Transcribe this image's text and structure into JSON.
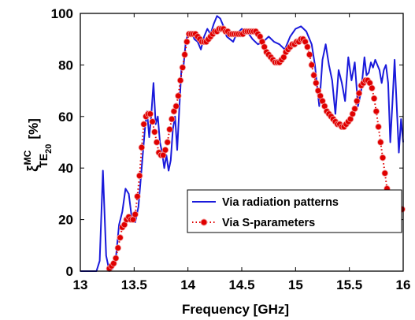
{
  "chart_data": {
    "type": "line",
    "xlabel": "Frequency [GHz]",
    "ylabel": {
      "symbol": "ξ",
      "superscript": "MC",
      "subscript": "TE",
      "subsubscript": "20",
      "unit": "[%]"
    },
    "xlim": [
      13,
      16
    ],
    "ylim": [
      0,
      100
    ],
    "xticks": [
      "13",
      "13.5",
      "14",
      "14.5",
      "15",
      "15.5",
      "16"
    ],
    "yticks": [
      "0",
      "20",
      "40",
      "60",
      "80",
      "100"
    ],
    "grid": false,
    "legend_position": "lower-right",
    "series": [
      {
        "name": "Via radiation patterns",
        "color": "#1a1adb",
        "style": "solid",
        "marker": "none",
        "x": [
          13.0,
          13.15,
          13.18,
          13.21,
          13.24,
          13.27,
          13.3,
          13.33,
          13.36,
          13.39,
          13.42,
          13.45,
          13.48,
          13.51,
          13.54,
          13.57,
          13.6,
          13.62,
          13.64,
          13.66,
          13.68,
          13.7,
          13.72,
          13.74,
          13.76,
          13.78,
          13.8,
          13.82,
          13.84,
          13.86,
          13.88,
          13.9,
          13.92,
          13.94,
          13.96,
          13.98,
          14.0,
          14.03,
          14.06,
          14.09,
          14.12,
          14.15,
          14.18,
          14.21,
          14.24,
          14.27,
          14.3,
          14.33,
          14.36,
          14.39,
          14.42,
          14.45,
          14.5,
          14.55,
          14.6,
          14.65,
          14.7,
          14.75,
          14.8,
          14.85,
          14.9,
          14.95,
          15.0,
          15.05,
          15.1,
          15.15,
          15.18,
          15.22,
          15.25,
          15.28,
          15.31,
          15.34,
          15.37,
          15.4,
          15.43,
          15.46,
          15.49,
          15.52,
          15.55,
          15.58,
          15.61,
          15.64,
          15.66,
          15.68,
          15.7,
          15.72,
          15.74,
          15.76,
          15.78,
          15.8,
          15.82,
          15.84,
          15.86,
          15.88,
          15.9,
          15.92,
          15.94,
          15.96,
          15.98,
          16.0
        ],
        "y": [
          0,
          0,
          4,
          39,
          6,
          0,
          1,
          5,
          18,
          23,
          32,
          30,
          20,
          19,
          25,
          40,
          55,
          62,
          52,
          61,
          73,
          57,
          60,
          50,
          46,
          40,
          45,
          39,
          43,
          55,
          60,
          47,
          63,
          79,
          80,
          89,
          92,
          93,
          90,
          89,
          86,
          91,
          94,
          92,
          96,
          99,
          98,
          95,
          91,
          90,
          89,
          92,
          94,
          93,
          90,
          88,
          89,
          91,
          89,
          88,
          86,
          91,
          94,
          95,
          93,
          88,
          80,
          64,
          82,
          88,
          80,
          74,
          61,
          78,
          73,
          66,
          83,
          74,
          81,
          64,
          70,
          83,
          76,
          77,
          81,
          79,
          82,
          80,
          78,
          73,
          78,
          80,
          73,
          50,
          65,
          82,
          64,
          46,
          59,
          50
        ]
      },
      {
        "name": "Via S-parameters",
        "color": "#e00000",
        "style": "dotted",
        "marker": "o",
        "x": [
          13.27,
          13.29,
          13.31,
          13.33,
          13.35,
          13.37,
          13.39,
          13.41,
          13.43,
          13.45,
          13.47,
          13.49,
          13.51,
          13.53,
          13.55,
          13.57,
          13.59,
          13.61,
          13.63,
          13.65,
          13.67,
          13.69,
          13.71,
          13.73,
          13.75,
          13.77,
          13.79,
          13.81,
          13.83,
          13.85,
          13.87,
          13.89,
          13.91,
          13.93,
          13.95,
          13.97,
          13.99,
          14.01,
          14.03,
          14.05,
          14.07,
          14.09,
          14.11,
          14.13,
          14.15,
          14.17,
          14.19,
          14.21,
          14.23,
          14.25,
          14.27,
          14.29,
          14.31,
          14.33,
          14.35,
          14.37,
          14.39,
          14.41,
          14.43,
          14.45,
          14.47,
          14.49,
          14.51,
          14.53,
          14.55,
          14.57,
          14.59,
          14.61,
          14.63,
          14.65,
          14.67,
          14.69,
          14.71,
          14.73,
          14.75,
          14.77,
          14.79,
          14.81,
          14.83,
          14.85,
          14.87,
          14.89,
          14.91,
          14.93,
          14.95,
          14.97,
          14.99,
          15.01,
          15.03,
          15.05,
          15.07,
          15.09,
          15.11,
          15.13,
          15.15,
          15.17,
          15.19,
          15.21,
          15.23,
          15.25,
          15.27,
          15.29,
          15.31,
          15.33,
          15.35,
          15.37,
          15.39,
          15.41,
          15.43,
          15.45,
          15.47,
          15.49,
          15.51,
          15.53,
          15.55,
          15.57,
          15.59,
          15.61,
          15.63,
          15.65,
          15.67,
          15.69,
          15.71,
          15.73,
          15.75,
          15.77,
          15.79,
          15.81,
          15.83,
          15.85,
          15.87,
          15.89,
          15.91,
          15.93,
          15.95,
          15.97,
          15.99
        ],
        "y": [
          1,
          2,
          3,
          5,
          9,
          13,
          17,
          18,
          20,
          21,
          20,
          20,
          22,
          29,
          37,
          48,
          57,
          60,
          61,
          61,
          58,
          54,
          50,
          46,
          45,
          45,
          47,
          50,
          55,
          59,
          62,
          64,
          68,
          74,
          79,
          84,
          89,
          92,
          92,
          92,
          92,
          91,
          90,
          89,
          89,
          89,
          90,
          91,
          92,
          93,
          93,
          94,
          94,
          94,
          93,
          93,
          92,
          92,
          92,
          92,
          92,
          92,
          92,
          93,
          93,
          93,
          93,
          93,
          93,
          92,
          91,
          89,
          87,
          85,
          84,
          83,
          82,
          81,
          81,
          81,
          82,
          83,
          85,
          86,
          87,
          88,
          88,
          89,
          89,
          90,
          90,
          89,
          87,
          84,
          80,
          76,
          73,
          70,
          68,
          66,
          64,
          62,
          61,
          60,
          59,
          58,
          57,
          57,
          56,
          56,
          57,
          58,
          59,
          61,
          63,
          66,
          69,
          72,
          73,
          74,
          74,
          73,
          71,
          67,
          62,
          56,
          50,
          44,
          38,
          32,
          28,
          26,
          25,
          24,
          24,
          24,
          24
        ]
      }
    ]
  }
}
